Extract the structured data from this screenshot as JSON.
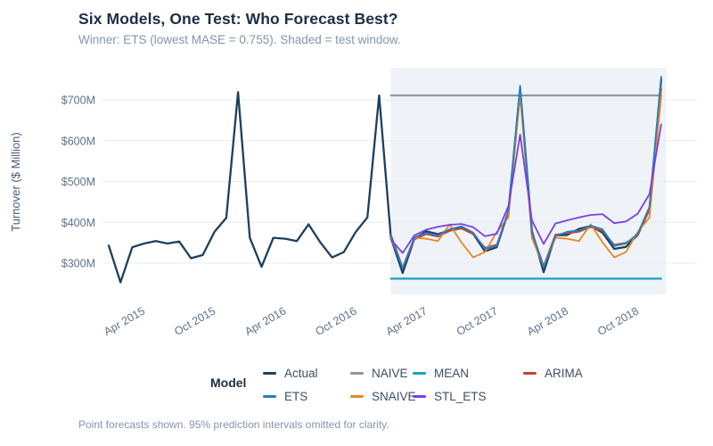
{
  "header": {
    "title": "Six Models, One Test: Who Forecast Best?",
    "subtitle": "Winner: ETS (lowest MASE = 0.755). Shaded = test window."
  },
  "chart_data": {
    "type": "line",
    "title": "Six Models, One Test: Who Forecast Best?",
    "subtitle": "Winner: ETS (lowest MASE = 0.755). Shaded = test window.",
    "xlabel": "",
    "ylabel": "Turnover ($ Million)",
    "x_unit": "month",
    "x_start": "Jan 2015",
    "x_end": "Dec 2018",
    "ylim": [
      223,
      783
    ],
    "grid": "horizontal-only",
    "y_ticks": [
      {
        "label": "$700M",
        "value": 700
      },
      {
        "label": "$600M",
        "value": 600
      },
      {
        "label": "$500M",
        "value": 500
      },
      {
        "label": "$400M",
        "value": 400
      },
      {
        "label": "$300M",
        "value": 300
      }
    ],
    "x_ticks": [
      {
        "label": "Apr 2015",
        "month_index": 3
      },
      {
        "label": "Oct 2015",
        "month_index": 9
      },
      {
        "label": "Apr 2016",
        "month_index": 15
      },
      {
        "label": "Oct 2016",
        "month_index": 21
      },
      {
        "label": "Apr 2017",
        "month_index": 27
      },
      {
        "label": "Oct 2017",
        "month_index": 33
      },
      {
        "label": "Apr 2018",
        "month_index": 39
      },
      {
        "label": "Oct 2018",
        "month_index": 45
      }
    ],
    "test_window": {
      "start_month_index": 24,
      "end_month_index": 47,
      "start_label": "Jan 2017",
      "end_label": "Dec 2018",
      "shade_color": "#eff3f8"
    },
    "gridline_color": "#e4ebf3",
    "series": [
      {
        "name": "MEAN",
        "color": "#17a2c0",
        "width": 2.2,
        "start_index": 24,
        "values": [
          262,
          262,
          262,
          262,
          262,
          262,
          262,
          262,
          262,
          262,
          262,
          262,
          262,
          262,
          262,
          262,
          262,
          262,
          262,
          262,
          262,
          262,
          262,
          262
        ]
      },
      {
        "name": "NAIVE",
        "color": "#8e979e",
        "width": 2.2,
        "start_index": 24,
        "values": [
          711,
          711,
          711,
          711,
          711,
          711,
          711,
          711,
          711,
          711,
          711,
          711,
          711,
          711,
          711,
          711,
          711,
          711,
          711,
          711,
          711,
          711,
          711,
          711
        ]
      },
      {
        "name": "Actual",
        "color": "#1d3f60",
        "width": 2.3,
        "start_index": 0,
        "values": [
          343,
          253,
          339,
          348,
          354,
          348,
          353,
          312,
          320,
          377,
          411,
          719,
          362,
          291,
          362,
          360,
          354,
          395,
          351,
          314,
          327,
          376,
          412,
          711,
          362,
          276,
          360,
          378,
          371,
          380,
          386,
          372,
          329,
          339,
          427,
          728,
          379,
          278,
          368,
          369,
          384,
          391,
          375,
          335,
          340,
          369,
          433,
          750
        ]
      },
      {
        "name": "ARIMA",
        "color": "#c5422e",
        "width": 1.8,
        "start_index": 24,
        "values": [
          370,
          290,
          358,
          371,
          365,
          379,
          385,
          371,
          338,
          345,
          425,
          724,
          377,
          293,
          370,
          373,
          377,
          388,
          379,
          345,
          350,
          368,
          430,
          727
        ]
      },
      {
        "name": "SNAIVE",
        "color": "#e8871e",
        "width": 1.8,
        "start_index": 24,
        "values": [
          362,
          291,
          362,
          360,
          354,
          395,
          351,
          314,
          327,
          376,
          412,
          711,
          362,
          291,
          362,
          360,
          354,
          395,
          351,
          314,
          327,
          376,
          412,
          711
        ]
      },
      {
        "name": "ETS",
        "color": "#2380c3",
        "width": 1.8,
        "start_index": 24,
        "values": [
          367,
          287,
          363,
          374,
          368,
          383,
          390,
          375,
          335,
          342,
          430,
          735,
          374,
          290,
          366,
          377,
          380,
          392,
          383,
          342,
          348,
          372,
          438,
          757
        ]
      },
      {
        "name": "STL_ETS",
        "color": "#7d3ce8",
        "width": 1.8,
        "start_index": 24,
        "values": [
          358,
          325,
          368,
          382,
          389,
          394,
          396,
          388,
          366,
          372,
          440,
          615,
          405,
          347,
          397,
          405,
          412,
          418,
          420,
          398,
          402,
          421,
          469,
          640
        ]
      }
    ]
  },
  "legend": {
    "title": "Model",
    "row1": [
      "Actual",
      "NAIVE",
      "MEAN",
      "ARIMA"
    ],
    "row2": [
      "ETS",
      "SNAIVE",
      "STL_ETS"
    ]
  },
  "caption": "Point forecasts shown. 95% prediction intervals omitted for clarity."
}
